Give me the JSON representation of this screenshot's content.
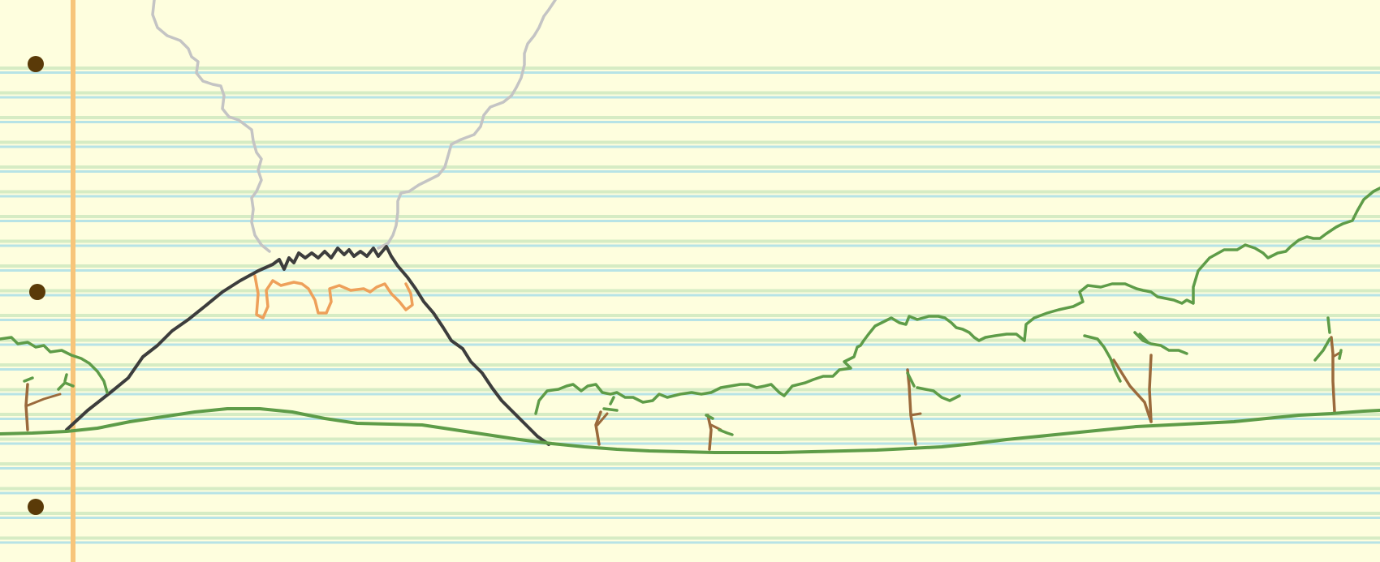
{
  "scene": {
    "type": "notebook-paper-doodle",
    "colors": {
      "paper": "#fefede",
      "rule_line_blue": "#b7e3e6",
      "rule_line_green": "#d6ecc4",
      "margin_line": "#f7c57a",
      "binder_hole": "#5a3a08",
      "ground": "#5e9c48",
      "foliage": "#5e9c48",
      "trunk": "#9b6a3c",
      "volcano": "#3d3d3d",
      "lava": "#eea05a",
      "smoke": "#c4c4c4"
    },
    "elements": [
      "binder-holes",
      "margin-line",
      "ruled-lines",
      "volcano",
      "lava",
      "smoke",
      "ground-line",
      "forest-canopy",
      "trees"
    ]
  }
}
